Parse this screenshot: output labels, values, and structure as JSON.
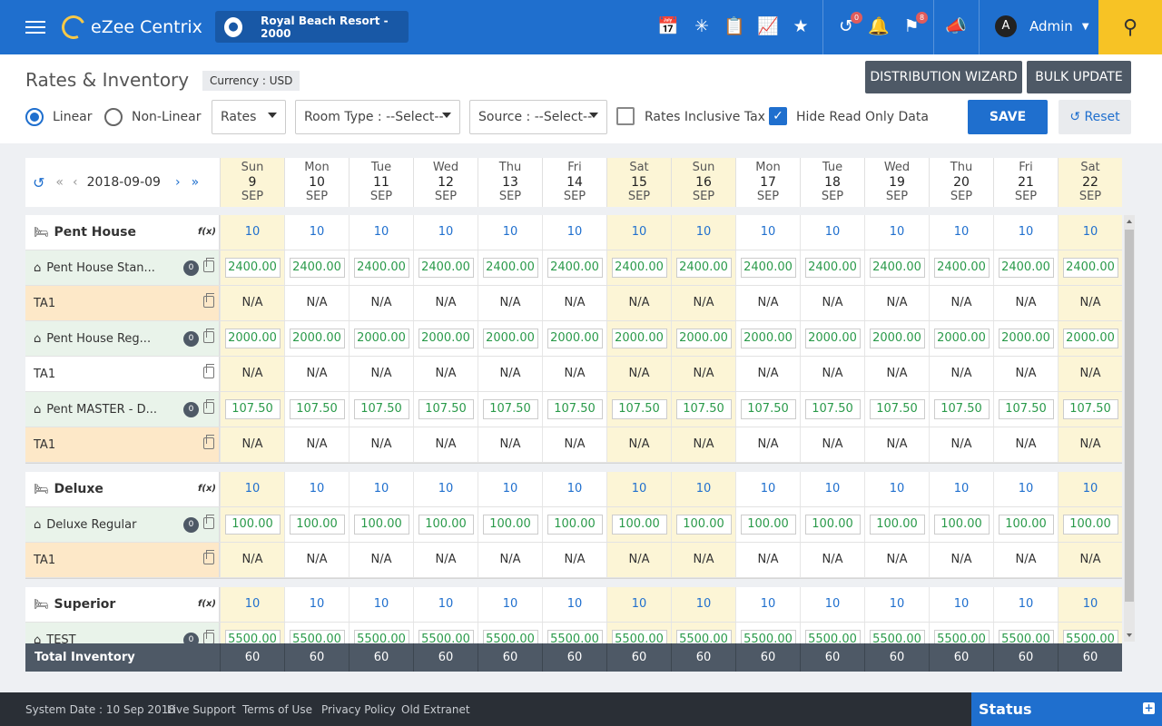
{
  "app": {
    "name": "eZee Centrix",
    "property": "Royal Beach Resort -  2000"
  },
  "topbar": {
    "user": "Admin",
    "user_initial": "A",
    "badge_undo": "0",
    "badge_flag": "8"
  },
  "page": {
    "title": "Rates & Inventory",
    "currency": "Currency : USD",
    "distribution_wizard": "DISTRIBUTION WIZARD",
    "bulk_update": "BULK UPDATE",
    "linear": "Linear",
    "non_linear": "Non-Linear",
    "rates_select": "Rates",
    "room_type_label": "Room Type :",
    "room_type_value": "--Select--",
    "source_label": "Source :",
    "source_value": "--Select--",
    "rates_inclusive_tax": "Rates Inclusive Tax",
    "hide_read_only": "Hide Read Only Data",
    "save": "SAVE",
    "reset": "Reset"
  },
  "grid": {
    "start_date": "2018-09-09",
    "days": [
      {
        "dow": "Sun",
        "day": "9",
        "mon": "SEP",
        "weekend": true
      },
      {
        "dow": "Mon",
        "day": "10",
        "mon": "SEP",
        "weekend": false
      },
      {
        "dow": "Tue",
        "day": "11",
        "mon": "SEP",
        "weekend": false
      },
      {
        "dow": "Wed",
        "day": "12",
        "mon": "SEP",
        "weekend": false
      },
      {
        "dow": "Thu",
        "day": "13",
        "mon": "SEP",
        "weekend": false
      },
      {
        "dow": "Fri",
        "day": "14",
        "mon": "SEP",
        "weekend": false
      },
      {
        "dow": "Sat",
        "day": "15",
        "mon": "SEP",
        "weekend": true
      },
      {
        "dow": "Sun",
        "day": "16",
        "mon": "SEP",
        "weekend": true
      },
      {
        "dow": "Mon",
        "day": "17",
        "mon": "SEP",
        "weekend": false
      },
      {
        "dow": "Tue",
        "day": "18",
        "mon": "SEP",
        "weekend": false
      },
      {
        "dow": "Wed",
        "day": "19",
        "mon": "SEP",
        "weekend": false
      },
      {
        "dow": "Thu",
        "day": "20",
        "mon": "SEP",
        "weekend": false
      },
      {
        "dow": "Fri",
        "day": "21",
        "mon": "SEP",
        "weekend": false
      },
      {
        "dow": "Sat",
        "day": "22",
        "mon": "SEP",
        "weekend": true
      }
    ],
    "rows": [
      {
        "kind": "group",
        "label": "Pent House",
        "value": "10"
      },
      {
        "kind": "rate",
        "label": "Pent House Stan...",
        "count": "0",
        "value": "2400.00"
      },
      {
        "kind": "ta",
        "label": "TA1",
        "value": "N/A",
        "highlight": true
      },
      {
        "kind": "rate",
        "label": "Pent House Reg...",
        "count": "0",
        "value": "2000.00"
      },
      {
        "kind": "ta",
        "label": "TA1",
        "value": "N/A",
        "highlight": false
      },
      {
        "kind": "rate",
        "label": "Pent MASTER - D...",
        "count": "0",
        "value": "107.50"
      },
      {
        "kind": "ta",
        "label": "TA1",
        "value": "N/A",
        "highlight": true
      },
      {
        "kind": "gap"
      },
      {
        "kind": "group",
        "label": "Deluxe",
        "value": "10"
      },
      {
        "kind": "rate",
        "label": "Deluxe Regular",
        "count": "0",
        "value": "100.00"
      },
      {
        "kind": "ta",
        "label": "TA1",
        "value": "N/A",
        "highlight": true
      },
      {
        "kind": "gap"
      },
      {
        "kind": "group",
        "label": "Superior",
        "value": "10"
      },
      {
        "kind": "rate",
        "label": "TEST",
        "count": "0",
        "value": "5500.00"
      }
    ],
    "fx": "f(x)",
    "total_label": "Total Inventory",
    "totals": [
      "60",
      "60",
      "60",
      "60",
      "60",
      "60",
      "60",
      "60",
      "60",
      "60",
      "60",
      "60",
      "60",
      "60"
    ]
  },
  "footer": {
    "system_date": "System Date : 10 Sep 2018",
    "live_support": "Live Support",
    "terms": "Terms of Use",
    "privacy": "Privacy Policy",
    "old_extranet": "Old Extranet",
    "status": "Status"
  }
}
